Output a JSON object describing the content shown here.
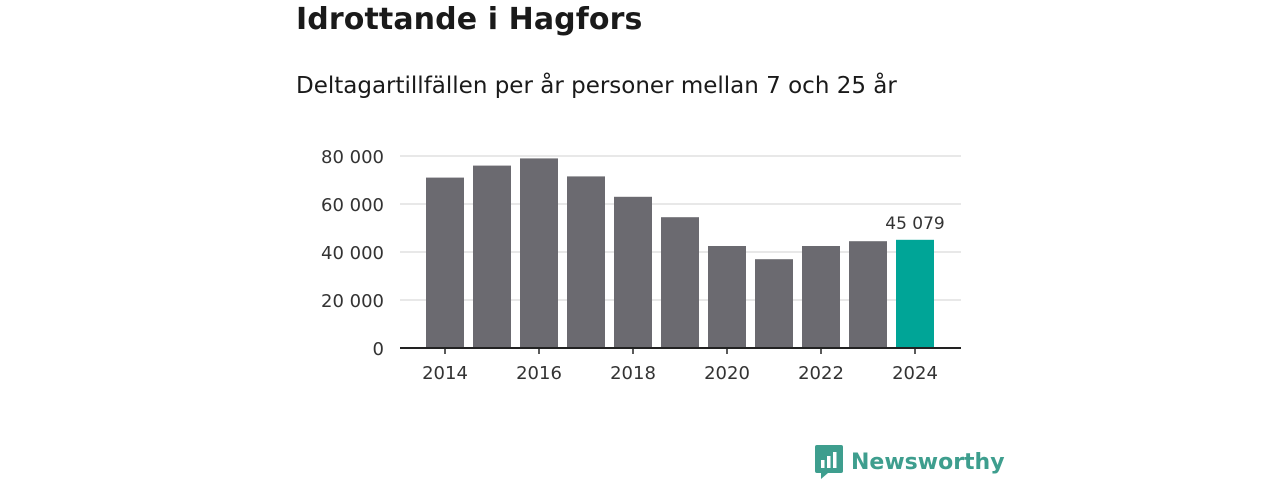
{
  "header": {
    "title": "Idrottande i Hagfors",
    "subtitle": "Deltagartillfällen per år personer mellan 7 och 25 år"
  },
  "colors": {
    "bar": "#6b6a70",
    "highlight": "#00a597",
    "grid": "#d9d9d9",
    "axis": "#222222",
    "brand": "#3e9e8e"
  },
  "chart_data": {
    "type": "bar",
    "title": "Idrottande i Hagfors",
    "subtitle": "Deltagartillfällen per år personer mellan 7 och 25 år",
    "xlabel": "",
    "ylabel": "",
    "categories": [
      "2014",
      "2015",
      "2016",
      "2017",
      "2018",
      "2019",
      "2020",
      "2021",
      "2022",
      "2023",
      "2024"
    ],
    "values": [
      71000,
      76000,
      79000,
      71500,
      63000,
      54500,
      42500,
      37000,
      42500,
      44500,
      45079
    ],
    "x_tick_labels": [
      "2014",
      "2016",
      "2018",
      "2020",
      "2022",
      "2024"
    ],
    "y_ticks": [
      0,
      20000,
      40000,
      60000,
      80000
    ],
    "y_tick_labels": [
      "0",
      "20 000",
      "40 000",
      "60 000",
      "80 000"
    ],
    "ylim": [
      0,
      80000
    ],
    "grid": true,
    "highlight_category": "2024",
    "highlight_label": "45 079"
  },
  "branding": {
    "name": "Newsworthy",
    "logo_icon": "bar-chart-speech-bubble-icon"
  }
}
